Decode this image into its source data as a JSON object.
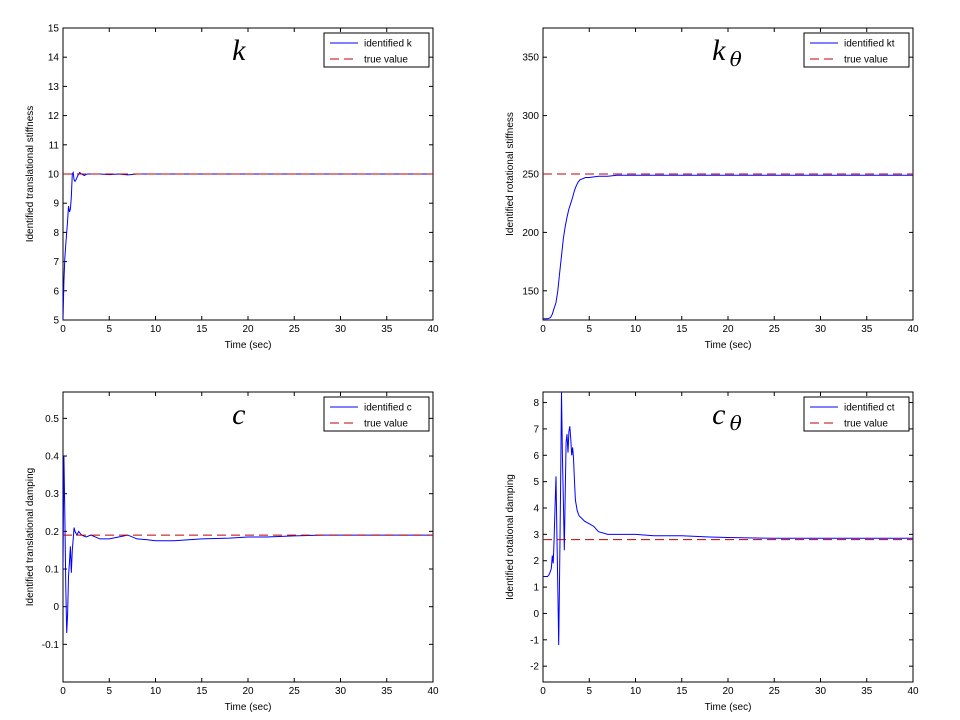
{
  "chart_data": [
    {
      "type": "line",
      "title": "k",
      "title_subscript": "",
      "xlabel": "Time (sec)",
      "ylabel": "Identified translational stiffness",
      "xlim": [
        0,
        40
      ],
      "ylim": [
        5,
        15
      ],
      "xticks": [
        0,
        5,
        10,
        15,
        20,
        25,
        30,
        35,
        40
      ],
      "yticks": [
        5,
        6,
        7,
        8,
        9,
        10,
        11,
        12,
        13,
        14,
        15
      ],
      "legend_position": "top-right",
      "series": [
        {
          "name": "identified k",
          "color": "#0000ff",
          "style": "solid",
          "x": [
            0,
            0.1,
            0.2,
            0.3,
            0.4,
            0.5,
            0.6,
            0.7,
            0.8,
            0.9,
            1.0,
            1.1,
            1.2,
            1.3,
            1.4,
            1.6,
            1.8,
            2.0,
            2.3,
            2.6,
            3.0,
            4,
            5,
            6,
            7,
            8,
            10,
            15,
            20,
            25,
            30,
            35,
            40
          ],
          "y": [
            5.0,
            6.3,
            7.1,
            7.6,
            8.0,
            8.4,
            8.9,
            8.7,
            8.8,
            9.2,
            10.0,
            10.05,
            9.8,
            9.75,
            9.8,
            9.95,
            10.05,
            10.0,
            9.95,
            10.0,
            10.0,
            10.0,
            9.98,
            10.0,
            9.97,
            10.0,
            10.0,
            10.0,
            10.0,
            10.0,
            10.0,
            10.0,
            10.0
          ]
        },
        {
          "name": "true value",
          "color": "#c00000",
          "style": "dashed",
          "x": [
            0,
            40
          ],
          "y": [
            10,
            10
          ]
        }
      ]
    },
    {
      "type": "line",
      "title": "k",
      "title_subscript": "θ",
      "xlabel": "Time (sec)",
      "ylabel": "Identified rotational stiffness",
      "xlim": [
        0,
        40
      ],
      "ylim": [
        125,
        375
      ],
      "xticks": [
        0,
        5,
        10,
        15,
        20,
        25,
        30,
        35,
        40
      ],
      "yticks": [
        150,
        200,
        250,
        300,
        350
      ],
      "legend_position": "top-right",
      "series": [
        {
          "name": "identified kt",
          "color": "#0000ff",
          "style": "solid",
          "x": [
            0,
            0.5,
            0.8,
            1.0,
            1.2,
            1.4,
            1.6,
            1.8,
            2.0,
            2.2,
            2.4,
            2.6,
            2.8,
            3.0,
            3.2,
            3.4,
            3.6,
            3.8,
            4.0,
            4.3,
            4.6,
            5.0,
            6.0,
            7.0,
            8.0,
            10.0,
            12.0,
            15.0,
            20,
            25,
            30,
            35,
            40
          ],
          "y": [
            126,
            126,
            127,
            130,
            135,
            140,
            150,
            165,
            180,
            195,
            205,
            213,
            220,
            225,
            230,
            236,
            240,
            243,
            245,
            246,
            247,
            247,
            248,
            248,
            249,
            249,
            249,
            249,
            249,
            249,
            249,
            249,
            249
          ]
        },
        {
          "name": "true value",
          "color": "#c00000",
          "style": "dashed",
          "x": [
            0,
            40
          ],
          "y": [
            250,
            250
          ]
        }
      ]
    },
    {
      "type": "line",
      "title": "c",
      "title_subscript": "",
      "xlabel": "Time (sec)",
      "ylabel": "Identified translational damping",
      "xlim": [
        0,
        40
      ],
      "ylim": [
        -0.2,
        0.57
      ],
      "xticks": [
        0,
        5,
        10,
        15,
        20,
        25,
        30,
        35,
        40
      ],
      "yticks": [
        -0.1,
        0,
        0.1,
        0.2,
        0.3,
        0.4,
        0.5
      ],
      "legend_position": "top-right",
      "series": [
        {
          "name": "identified c",
          "color": "#0000ff",
          "style": "solid",
          "x": [
            0,
            0.1,
            0.2,
            0.3,
            0.4,
            0.5,
            0.6,
            0.7,
            0.8,
            0.9,
            1.0,
            1.1,
            1.2,
            1.3,
            1.5,
            1.7,
            2.0,
            2.5,
            3,
            4,
            5,
            6,
            7,
            8,
            9,
            10,
            12,
            15,
            18,
            20,
            22,
            25,
            28,
            30,
            35,
            40
          ],
          "y": [
            0.1,
            0.4,
            0.25,
            0.05,
            -0.07,
            -0.02,
            0.08,
            0.12,
            0.16,
            0.09,
            0.15,
            0.18,
            0.21,
            0.2,
            0.19,
            0.2,
            0.19,
            0.185,
            0.19,
            0.18,
            0.18,
            0.185,
            0.19,
            0.18,
            0.178,
            0.175,
            0.175,
            0.18,
            0.182,
            0.185,
            0.185,
            0.188,
            0.19,
            0.19,
            0.19,
            0.19
          ]
        },
        {
          "name": "true value",
          "color": "#c00000",
          "style": "dashed",
          "x": [
            0,
            40
          ],
          "y": [
            0.19,
            0.19
          ]
        }
      ]
    },
    {
      "type": "line",
      "title": "c",
      "title_subscript": "θ",
      "xlabel": "Time (sec)",
      "ylabel": "Identified rotational damping",
      "xlim": [
        0,
        40
      ],
      "ylim": [
        -2.6,
        8.4
      ],
      "xticks": [
        0,
        5,
        10,
        15,
        20,
        25,
        30,
        35,
        40
      ],
      "yticks": [
        -2,
        -1,
        0,
        1,
        2,
        3,
        4,
        5,
        6,
        7,
        8
      ],
      "legend_position": "top-right",
      "series": [
        {
          "name": "identified ct",
          "color": "#0000ff",
          "style": "solid",
          "x": [
            0,
            0.5,
            0.7,
            0.9,
            1.0,
            1.1,
            1.2,
            1.3,
            1.4,
            1.5,
            1.6,
            1.7,
            1.8,
            1.9,
            2.0,
            2.1,
            2.2,
            2.3,
            2.4,
            2.5,
            2.6,
            2.7,
            2.8,
            2.9,
            3.0,
            3.1,
            3.2,
            3.3,
            3.4,
            3.5,
            3.7,
            3.9,
            4.2,
            4.5,
            5.0,
            5.5,
            6.0,
            7.0,
            8.0,
            10,
            12,
            15,
            18,
            20,
            25,
            30,
            35,
            40
          ],
          "y": [
            1.4,
            1.4,
            1.5,
            1.7,
            2.2,
            1.9,
            2.8,
            4.0,
            5.2,
            3.0,
            1.0,
            -1.2,
            1.5,
            4.8,
            8.4,
            6.0,
            4.2,
            2.4,
            4.5,
            6.5,
            6.8,
            6.1,
            6.9,
            7.1,
            6.6,
            6.0,
            6.3,
            5.9,
            5.0,
            4.3,
            3.9,
            3.7,
            3.6,
            3.5,
            3.4,
            3.3,
            3.1,
            3.0,
            3.0,
            3.0,
            2.95,
            2.95,
            2.9,
            2.88,
            2.85,
            2.85,
            2.85,
            2.85
          ]
        },
        {
          "name": "true value",
          "color": "#c00000",
          "style": "dashed",
          "x": [
            0,
            40
          ],
          "y": [
            2.8,
            2.8
          ]
        }
      ]
    }
  ]
}
